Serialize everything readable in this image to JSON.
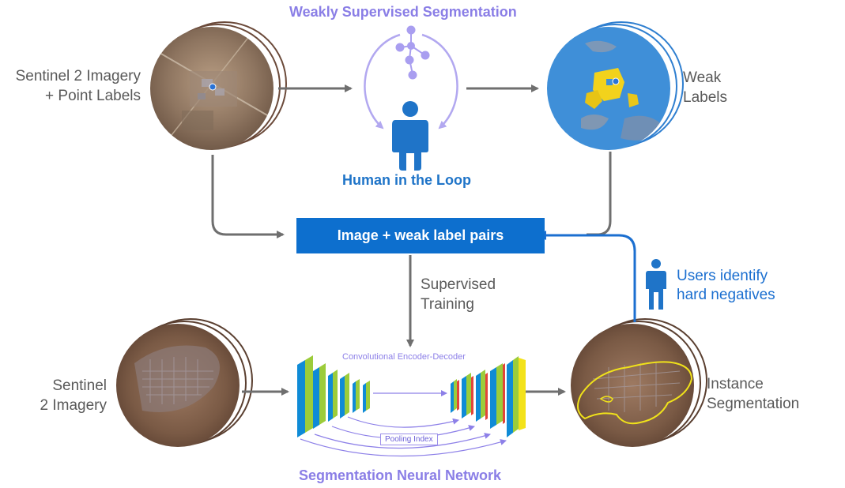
{
  "titles": {
    "top": "Weakly Supervised Segmentation",
    "human_loop": "Human in the Loop",
    "bottom": "Segmentation Neural Network"
  },
  "labels": {
    "sentinel_points_line1": "Sentinel 2 Imagery",
    "sentinel_points_line2": "+ Point Labels",
    "weak_line1": "Weak",
    "weak_line2": "Labels",
    "supervised_line1": "Supervised",
    "supervised_line2": "Training",
    "sentinel_line1": "Sentinel",
    "sentinel_line2": "2 Imagery",
    "instance_line1": "Instance",
    "instance_line2": "Segmentation",
    "users_line1": "Users identify",
    "users_line2": "hard negatives"
  },
  "center_box": "Image + weak label pairs",
  "encoder_decoder_label": "Convolutional Encoder-Decoder",
  "pooling_label": "Pooling Index",
  "colors": {
    "purple": "#8a7ee6",
    "blue": "#1f74c8",
    "box_blue": "#0d6fce",
    "arrow_gray": "#6f6f6f",
    "weak_label_blue": "#3f8fd8",
    "weak_label_yellow": "#f2d21c"
  },
  "icons": [
    "graph-icon",
    "person-icon",
    "cycle-arrows-icon",
    "satellite-image-icon"
  ]
}
